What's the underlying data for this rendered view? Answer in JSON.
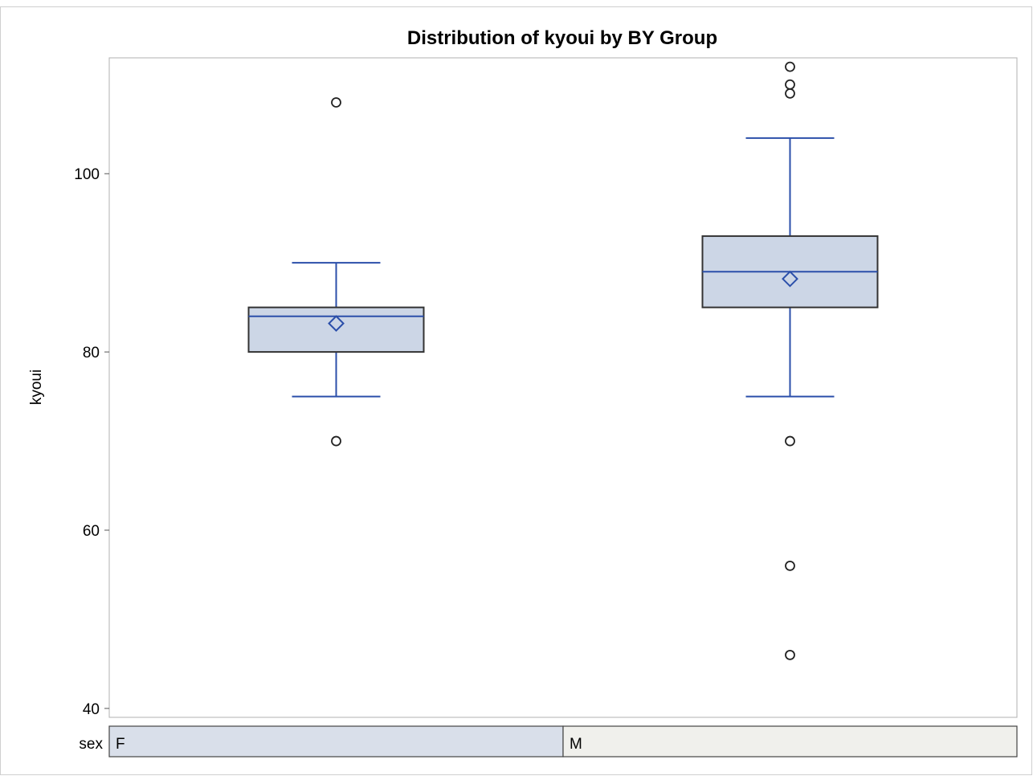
{
  "chart_data": {
    "type": "box",
    "title": "Distribution of kyoui by BY Group",
    "xlabel": "",
    "ylabel": "kyoui",
    "ylim": [
      39,
      113
    ],
    "yticks": [
      40,
      60,
      80,
      100
    ],
    "grid": false,
    "class_variable": "sex",
    "categories": [
      "F",
      "M"
    ],
    "boxes": [
      {
        "category": "F",
        "q1": 80,
        "median": 84,
        "q3": 85,
        "mean": 83.2,
        "whisker_low": 75,
        "whisker_high": 90,
        "outliers": [
          108,
          70
        ]
      },
      {
        "category": "M",
        "q1": 85,
        "median": 89,
        "q3": 93,
        "mean": 88.2,
        "whisker_low": 75,
        "whisker_high": 104,
        "outliers": [
          112,
          110,
          109,
          70,
          56,
          46
        ]
      }
    ]
  },
  "colors": {
    "box_fill": "#ccd6e6",
    "box_edge": "#333333",
    "whisker": "#2b4faa",
    "outlier": "#222222",
    "strip_F": "#d9dfea",
    "strip_M": "#f0f0ec",
    "frame": "#b0b0b0"
  }
}
